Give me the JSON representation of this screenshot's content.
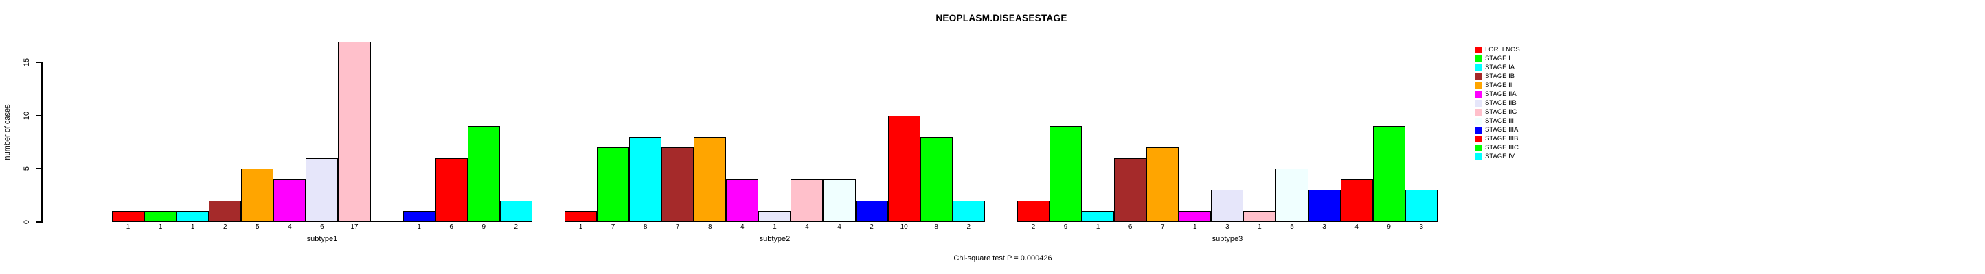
{
  "title": "NEOPLASM.DISEASESTAGE",
  "footer": "Chi-square test P = 0.000426",
  "y_axis": {
    "label": "number of cases",
    "ticks": [
      0,
      5,
      10,
      15
    ]
  },
  "chart_data": {
    "type": "bar",
    "title": "NEOPLASM.DISEASESTAGE",
    "xlabel": "",
    "ylabel": "number of cases",
    "ylim": [
      0,
      17
    ],
    "yticks": [
      0,
      5,
      10,
      15
    ],
    "grid": false,
    "legend_position": "right",
    "bar_value_labels": true,
    "annotation": "Chi-square test P = 0.000426",
    "categories": [
      "I OR II NOS",
      "STAGE I",
      "STAGE IA",
      "STAGE IB",
      "STAGE II",
      "STAGE IIA",
      "STAGE IIB",
      "STAGE IIC",
      "STAGE III",
      "STAGE IIIA",
      "STAGE IIIB",
      "STAGE IIIC",
      "STAGE IV"
    ],
    "colors": [
      "#FF0000",
      "#00FF00",
      "#00FFFF",
      "#A52A2A",
      "#FFA500",
      "#FF00FF",
      "#E6E6FA",
      "#FFC0CB",
      "#F0FFFF",
      "#0000FF",
      "#FF0000",
      "#00FF00",
      "#00FFFF"
    ],
    "series": [
      {
        "name": "subtype1",
        "values": [
          1,
          1,
          1,
          2,
          5,
          4,
          6,
          17,
          0,
          1,
          6,
          9,
          2
        ]
      },
      {
        "name": "subtype2",
        "values": [
          1,
          7,
          8,
          7,
          8,
          4,
          1,
          4,
          4,
          2,
          10,
          8,
          2
        ]
      },
      {
        "name": "subtype3",
        "values": [
          2,
          9,
          1,
          6,
          7,
          1,
          3,
          1,
          5,
          3,
          4,
          9,
          3
        ]
      }
    ]
  }
}
